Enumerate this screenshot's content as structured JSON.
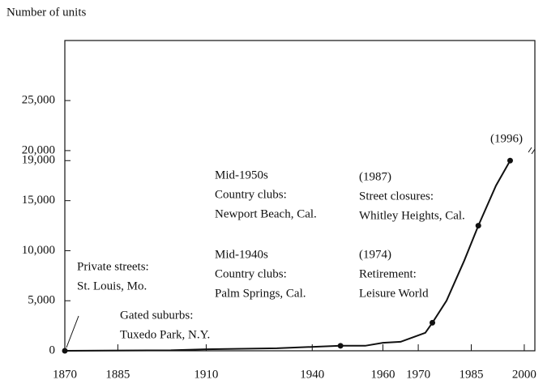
{
  "chart_data": {
    "type": "line",
    "y_label": "Number of units",
    "x": [
      1870,
      1900,
      1910,
      1930,
      1948,
      1955,
      1960,
      1965,
      1972,
      1974,
      1978,
      1983,
      1987,
      1992,
      1996
    ],
    "values": [
      0,
      50,
      150,
      250,
      500,
      500,
      800,
      900,
      1800,
      2800,
      5000,
      9000,
      12500,
      16500,
      19000
    ],
    "points": {
      "x": [
        1870,
        1948,
        1974,
        1987,
        1996
      ],
      "values": [
        0,
        500,
        2800,
        12500,
        19000
      ]
    },
    "color": "#111111",
    "xlim": [
      1870,
      2003
    ],
    "xticks": [
      1870,
      1885,
      1910,
      1940,
      1960,
      1970,
      1985,
      2000
    ],
    "ylim": [
      0,
      31000
    ],
    "yticks": [
      {
        "value": 0,
        "label": "0"
      },
      {
        "value": 5000,
        "label": "5,000"
      },
      {
        "value": 10000,
        "label": "10,000"
      },
      {
        "value": 15000,
        "label": "15,000"
      },
      {
        "value": 19000,
        "label": "19,000"
      },
      {
        "value": 20000,
        "label": "20,000"
      },
      {
        "value": 25000,
        "label": "25,000"
      }
    ],
    "annotations": [
      {
        "lines": [
          "Private streets:",
          "St. Louis, Mo."
        ]
      },
      {
        "lines": [
          "Gated suburbs:",
          "Tuxedo Park, N.Y."
        ]
      },
      {
        "lines": [
          "Mid-1940s",
          "Country clubs:",
          "Palm Springs, Cal."
        ]
      },
      {
        "lines": [
          "Mid-1950s",
          "Country clubs:",
          "Newport Beach, Cal."
        ]
      },
      {
        "lines": [
          "(1974)",
          "Retirement:",
          "Leisure World"
        ]
      },
      {
        "lines": [
          "(1987)",
          "Street closures:",
          "Whitley Heights, Cal."
        ]
      },
      {
        "lines": [
          "(1996)"
        ]
      }
    ]
  }
}
